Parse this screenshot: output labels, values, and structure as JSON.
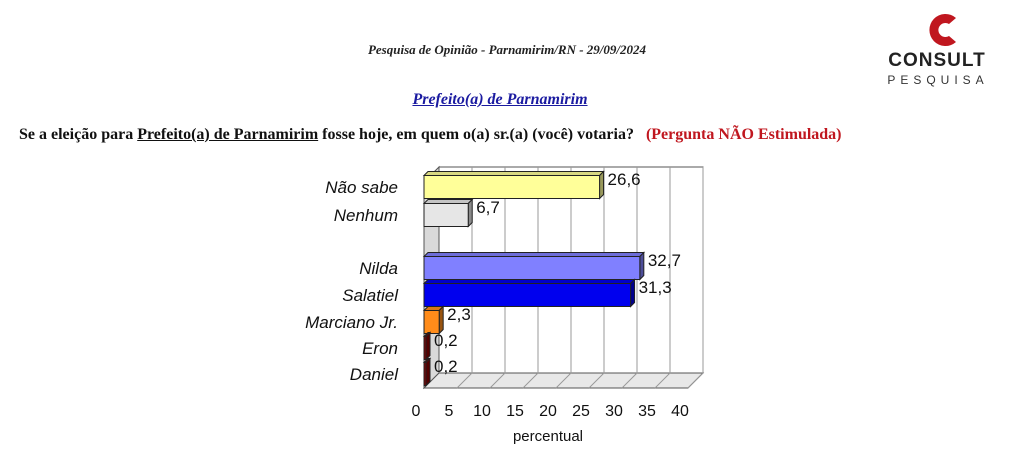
{
  "header": {
    "survey_line": "Pesquisa de Opinião  -  Parnamirim/RN  -  29/09/2024"
  },
  "logo": {
    "name": "CONSULT",
    "sub": "PESQUISA",
    "accent_color": "#c0171f"
  },
  "question": {
    "prefix": "Se a eleição para ",
    "underlined": "Prefeito(a) de Parnamirim",
    "suffix": " fosse hoje, em quem o(a) sr.(a) (você) votaria?",
    "note": "(Pergunta NÃO Estimulada)"
  },
  "chart_data": {
    "type": "bar",
    "orientation": "horizontal",
    "title": "Prefeito(a) de Parnamirim",
    "xlabel": "percentual",
    "xlim": [
      0,
      40
    ],
    "xticks": [
      0,
      5,
      10,
      15,
      20,
      25,
      30,
      35,
      40
    ],
    "categories": [
      "Não sabe",
      "Nenhum",
      "Nilda",
      "Salatiel",
      "Marciano Jr.",
      "Eron",
      "Daniel"
    ],
    "values": [
      26.6,
      6.7,
      32.7,
      31.3,
      2.3,
      0.2,
      0.2
    ],
    "value_labels": [
      "26,6",
      "6,7",
      "32,7",
      "31,3",
      "2,3",
      "0,2",
      "0,2"
    ],
    "colors": [
      "#ffff99",
      "#e6e6e6",
      "#8080ff",
      "#0000ee",
      "#ff8c1a",
      "#8b0000",
      "#8b0000"
    ],
    "grid": true,
    "legend": "none"
  }
}
